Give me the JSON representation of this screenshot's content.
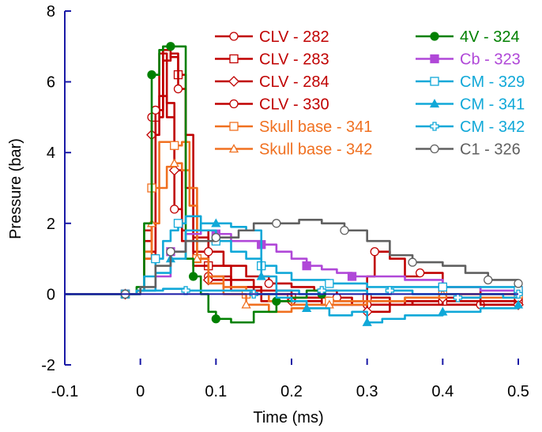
{
  "chart_data": {
    "type": "line",
    "xlabel": "Time (ms)",
    "ylabel": "Pressure (bar)",
    "xlim": [
      -0.1,
      0.5
    ],
    "ylim": [
      -2,
      8
    ],
    "xticks": [
      "-0.1",
      "0",
      "0.1",
      "0.2",
      "0.3",
      "0.4",
      "0.5"
    ],
    "yticks": [
      "-2",
      "0",
      "2",
      "4",
      "6",
      "8"
    ],
    "legend_position": "top-right",
    "series": [
      {
        "name": "CLV - 282",
        "color": "#c00000",
        "marker": "circle",
        "x": [
          -0.1,
          -0.02,
          -0.005,
          0.005,
          0.015,
          0.025,
          0.035,
          0.045,
          0.055,
          0.07,
          0.09,
          0.12,
          0.16,
          0.2,
          0.24,
          0.28,
          0.3,
          0.35,
          0.4,
          0.45,
          0.5
        ],
        "y": [
          0,
          0,
          0.1,
          1.5,
          5.0,
          6.8,
          5.4,
          2.4,
          1.5,
          1.2,
          0.5,
          0.1,
          -0.2,
          -0.1,
          -0.3,
          -0.2,
          -0.3,
          -0.2,
          -0.3,
          -0.3,
          -0.2
        ]
      },
      {
        "name": "CLV - 283",
        "color": "#c00000",
        "marker": "square",
        "x": [
          -0.1,
          -0.02,
          -0.005,
          0.005,
          0.02,
          0.03,
          0.04,
          0.05,
          0.06,
          0.07,
          0.09,
          0.12,
          0.15,
          0.2,
          0.25,
          0.28,
          0.3,
          0.33,
          0.36,
          0.4,
          0.45,
          0.5
        ],
        "y": [
          0,
          0,
          0.1,
          1.0,
          5.0,
          6.6,
          6.8,
          6.2,
          4.5,
          1.8,
          0.8,
          0.4,
          0.1,
          -0.1,
          -0.2,
          -0.2,
          -0.1,
          -0.3,
          -0.2,
          -0.2,
          -0.3,
          -0.2
        ]
      },
      {
        "name": "CLV - 284",
        "color": "#c00000",
        "marker": "diamond",
        "x": [
          -0.1,
          -0.02,
          -0.005,
          0.005,
          0.015,
          0.025,
          0.035,
          0.045,
          0.055,
          0.07,
          0.09,
          0.12,
          0.16,
          0.2,
          0.24,
          0.28,
          0.3,
          0.33,
          0.36,
          0.4,
          0.45,
          0.5
        ],
        "y": [
          0,
          0,
          0.1,
          1.8,
          4.5,
          5.6,
          5.0,
          3.5,
          1.8,
          0.8,
          0.4,
          0.2,
          0.0,
          -0.2,
          -0.3,
          -0.3,
          -0.5,
          -0.2,
          -0.3,
          -0.1,
          -0.2,
          -0.3
        ]
      },
      {
        "name": "CLV - 330",
        "color": "#c00000",
        "marker": "circle",
        "x": [
          -0.1,
          -0.02,
          -0.005,
          0.005,
          0.02,
          0.03,
          0.04,
          0.05,
          0.06,
          0.07,
          0.09,
          0.11,
          0.14,
          0.17,
          0.2,
          0.23,
          0.26,
          0.28,
          0.3,
          0.31,
          0.33,
          0.35,
          0.37,
          0.4,
          0.45,
          0.5
        ],
        "y": [
          0,
          0,
          0.1,
          1.2,
          5.2,
          6.9,
          6.7,
          5.8,
          3.0,
          1.6,
          1.2,
          0.8,
          0.5,
          0.3,
          0.2,
          0.1,
          -0.1,
          -0.3,
          0.5,
          1.2,
          1.0,
          0.5,
          0.6,
          0.2,
          0.0,
          -0.1
        ]
      },
      {
        "name": "Skull base - 341",
        "color": "#f07020",
        "marker": "square",
        "x": [
          -0.1,
          -0.02,
          -0.005,
          0.005,
          0.015,
          0.025,
          0.035,
          0.045,
          0.055,
          0.065,
          0.075,
          0.09,
          0.11,
          0.14,
          0.17,
          0.2,
          0.25,
          0.3,
          0.35,
          0.4,
          0.45,
          0.5
        ],
        "y": [
          0,
          0,
          0.1,
          1.2,
          3.0,
          4.3,
          4.3,
          4.2,
          4.3,
          3.0,
          1.0,
          0.5,
          0.2,
          0.0,
          -0.2,
          -0.3,
          -0.2,
          -0.2,
          -0.1,
          0.0,
          -0.1,
          0.0
        ]
      },
      {
        "name": "Skull base - 342",
        "color": "#f07020",
        "marker": "triangle",
        "x": [
          -0.1,
          -0.02,
          -0.005,
          0.005,
          0.015,
          0.025,
          0.035,
          0.045,
          0.055,
          0.065,
          0.075,
          0.09,
          0.11,
          0.14,
          0.17,
          0.2,
          0.25,
          0.3,
          0.35,
          0.4,
          0.45,
          0.5
        ],
        "y": [
          0,
          0,
          0.1,
          1.0,
          2.0,
          3.0,
          3.6,
          3.7,
          3.5,
          2.5,
          1.0,
          0.3,
          0.0,
          -0.3,
          -0.5,
          -0.4,
          -0.3,
          -0.2,
          -0.1,
          0.0,
          0.0,
          0.1
        ]
      },
      {
        "name": "4V - 324",
        "color": "#008000",
        "marker": "filled-circle",
        "x": [
          -0.1,
          -0.02,
          -0.005,
          0.005,
          0.015,
          0.025,
          0.03,
          0.04,
          0.05,
          0.06,
          0.07,
          0.08,
          0.09,
          0.1,
          0.12,
          0.15,
          0.18,
          0.2,
          0.22,
          0.24
        ],
        "y": [
          0,
          0,
          0.2,
          2.0,
          6.2,
          6.9,
          7.0,
          7.0,
          7.0,
          1.0,
          0.5,
          0.0,
          -0.5,
          -0.7,
          -0.8,
          -0.5,
          -0.2,
          -0.1,
          0.1,
          0.0
        ]
      },
      {
        "name": "Cb - 323",
        "color": "#b048d8",
        "marker": "filled-square",
        "x": [
          -0.1,
          -0.02,
          0.0,
          0.02,
          0.04,
          0.06,
          0.08,
          0.1,
          0.12,
          0.14,
          0.16,
          0.18,
          0.2,
          0.22,
          0.24,
          0.26,
          0.28,
          0.3,
          0.35,
          0.4,
          0.45,
          0.5
        ],
        "y": [
          0,
          0,
          0.1,
          0.5,
          1.2,
          1.7,
          1.8,
          1.7,
          1.5,
          1.5,
          1.4,
          1.2,
          1.0,
          0.8,
          0.7,
          0.6,
          0.5,
          0.5,
          0.4,
          0.2,
          0.1,
          0.1
        ]
      },
      {
        "name": "CM - 329",
        "color": "#10a8d8",
        "marker": "open-square",
        "x": [
          -0.1,
          -0.02,
          -0.005,
          0.005,
          0.02,
          0.03,
          0.04,
          0.05,
          0.06,
          0.08,
          0.1,
          0.12,
          0.14,
          0.16,
          0.18,
          0.2,
          0.25,
          0.3,
          0.35,
          0.4,
          0.45,
          0.5
        ],
        "y": [
          0,
          0,
          0.1,
          0.5,
          1.0,
          1.5,
          1.8,
          2.0,
          2.2,
          1.8,
          1.5,
          1.2,
          1.0,
          0.8,
          0.6,
          0.4,
          0.3,
          0.2,
          0.2,
          0.2,
          0.2,
          0.1
        ]
      },
      {
        "name": "CM - 341",
        "color": "#10a8d8",
        "marker": "filled-triangle",
        "x": [
          -0.1,
          -0.02,
          0.0,
          0.02,
          0.04,
          0.06,
          0.08,
          0.1,
          0.12,
          0.14,
          0.16,
          0.18,
          0.2,
          0.22,
          0.25,
          0.28,
          0.3,
          0.32,
          0.35,
          0.4,
          0.45,
          0.5
        ],
        "y": [
          0,
          0,
          0.1,
          0.6,
          1.0,
          1.8,
          2.0,
          2.0,
          1.9,
          1.8,
          0.5,
          -0.1,
          -0.2,
          -0.4,
          -0.6,
          -0.5,
          -0.8,
          -0.7,
          -0.6,
          -0.5,
          -0.4,
          -0.3
        ]
      },
      {
        "name": "CM - 342",
        "color": "#10a8d8",
        "marker": "cross",
        "x": [
          -0.1,
          -0.02,
          0.0,
          0.03,
          0.06,
          0.09,
          0.12,
          0.15,
          0.18,
          0.21,
          0.24,
          0.27,
          0.3,
          0.33,
          0.36,
          0.39,
          0.42,
          0.45,
          0.48,
          0.5
        ],
        "y": [
          0,
          0,
          0.1,
          0.15,
          0.1,
          0.1,
          0.1,
          0.0,
          0.1,
          0.0,
          0.1,
          0.1,
          0.0,
          0.1,
          0.0,
          0.0,
          -0.1,
          0.0,
          -0.1,
          0.0
        ]
      },
      {
        "name": "C1 - 326",
        "color": "#606060",
        "marker": "circle",
        "x": [
          -0.1,
          -0.02,
          0.0,
          0.02,
          0.04,
          0.06,
          0.08,
          0.1,
          0.13,
          0.15,
          0.18,
          0.21,
          0.24,
          0.27,
          0.3,
          0.33,
          0.36,
          0.4,
          0.43,
          0.46,
          0.5
        ],
        "y": [
          0,
          0,
          0.2,
          0.8,
          1.2,
          1.5,
          1.5,
          1.6,
          1.8,
          2.0,
          2.0,
          2.1,
          2.0,
          1.8,
          1.5,
          1.1,
          0.9,
          0.8,
          0.6,
          0.4,
          0.3
        ]
      }
    ]
  }
}
